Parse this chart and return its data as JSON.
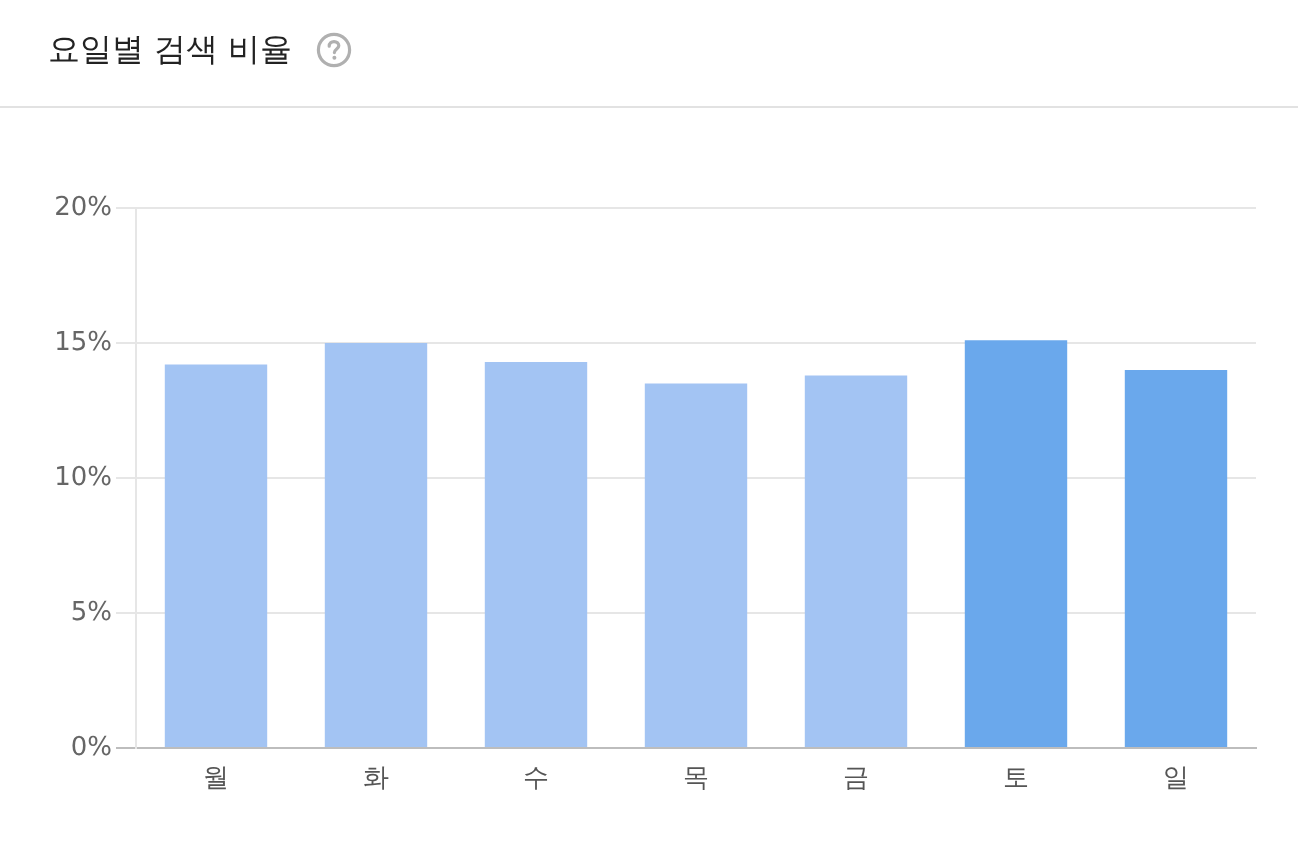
{
  "chart_data": {
    "type": "bar",
    "title": "요일별 검색 비율",
    "categories": [
      "월",
      "화",
      "수",
      "목",
      "금",
      "토",
      "일"
    ],
    "values": [
      14.2,
      15.0,
      14.3,
      13.5,
      13.8,
      15.1,
      14.0
    ],
    "colors": [
      "#a3c4f3",
      "#a3c4f3",
      "#a3c4f3",
      "#a3c4f3",
      "#a3c4f3",
      "#6aa8ec",
      "#6aa8ec"
    ],
    "ylim": [
      0,
      20
    ],
    "yticks": [
      {
        "value": 0,
        "label": "0%"
      },
      {
        "value": 5,
        "label": "5%"
      },
      {
        "value": 10,
        "label": "10%"
      },
      {
        "value": 15,
        "label": "15%"
      },
      {
        "value": 20,
        "label": "20%"
      }
    ],
    "grid": "y"
  }
}
